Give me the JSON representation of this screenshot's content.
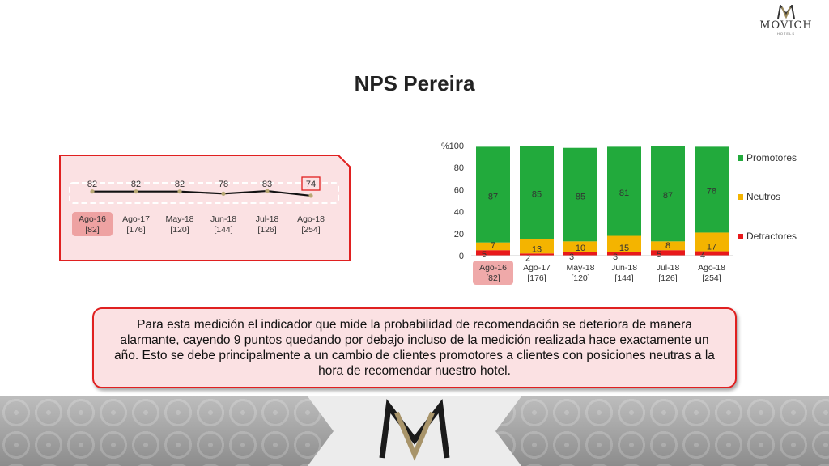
{
  "brand": {
    "name": "MOVICH",
    "sub": "HOTELS"
  },
  "title": "NPS Pereira",
  "colors": {
    "promoters": "#22aa3c",
    "neutrals": "#f4b400",
    "detractors": "#e8191b",
    "highlight": "#e98c8c",
    "border": "#e02020"
  },
  "chart_data": [
    {
      "type": "line",
      "categories": [
        "Ago-16",
        "Ago-17",
        "May-18",
        "Jun-18",
        "Jul-18",
        "Ago-18"
      ],
      "subcategories": [
        "[82]",
        "[176]",
        "[120]",
        "[144]",
        "[126]",
        "[254]"
      ],
      "values": [
        82,
        82,
        82,
        78,
        83,
        74
      ],
      "highlight_category": "Ago-16",
      "highlight_value": "Ago-18"
    },
    {
      "type": "bar",
      "stacked": true,
      "categories": [
        "Ago-16",
        "Ago-17",
        "May-18",
        "Jun-18",
        "Jul-18",
        "Ago-18"
      ],
      "subcategories": [
        "[82]",
        "[176]",
        "[120]",
        "[144]",
        "[126]",
        "[254]"
      ],
      "ylabel": "%",
      "ylim": [
        0,
        100
      ],
      "yticks": [
        0,
        20,
        40,
        60,
        80,
        100
      ],
      "legend": "right",
      "series": [
        {
          "name": "Detractores",
          "values": [
            5,
            2,
            3,
            3,
            5,
            4
          ]
        },
        {
          "name": "Neutros",
          "values": [
            7,
            13,
            10,
            15,
            8,
            17
          ]
        },
        {
          "name": "Promotores",
          "values": [
            87,
            85,
            85,
            81,
            87,
            78
          ]
        }
      ],
      "highlight_category": "Ago-16"
    }
  ],
  "summary": "Para esta medición el indicador que mide la probabilidad de recomendación se deteriora de manera alarmante, cayendo 9 puntos quedando por debajo incluso de la medición realizada hace exactamente un año. Esto se debe principalmente a un cambio de clientes promotores a clientes con posiciones neutras a la hora de recomendar nuestro hotel."
}
